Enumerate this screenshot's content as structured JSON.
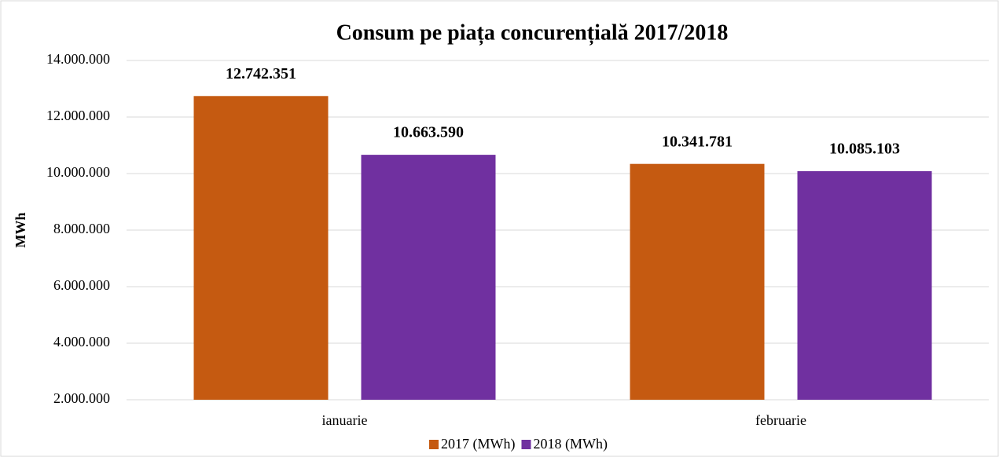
{
  "chart_data": {
    "type": "bar",
    "title": "Consum pe piața concurențială 2017/2018",
    "y_label": "MWh",
    "categories": [
      "ianuarie",
      "februarie"
    ],
    "series": [
      {
        "name": "2017 (MWh)",
        "color": "#c55a11",
        "values": [
          12742351,
          10341781
        ],
        "value_labels": [
          "12.742.351",
          "10.341.781"
        ]
      },
      {
        "name": "2018 (MWh)",
        "color": "#7030a0",
        "values": [
          10663590,
          10085103
        ],
        "value_labels": [
          "10.663.590",
          "10.085.103"
        ]
      }
    ],
    "ylim": [
      2000000,
      14000000
    ],
    "yticks": [
      {
        "value": 2000000,
        "label": "2.000.000"
      },
      {
        "value": 4000000,
        "label": "4.000.000"
      },
      {
        "value": 6000000,
        "label": "6.000.000"
      },
      {
        "value": 8000000,
        "label": "8.000.000"
      },
      {
        "value": 10000000,
        "label": "10.000.000"
      },
      {
        "value": 12000000,
        "label": "12.000.000"
      },
      {
        "value": 14000000,
        "label": "14.000.000"
      }
    ],
    "grid": true,
    "legend": "bottom"
  }
}
